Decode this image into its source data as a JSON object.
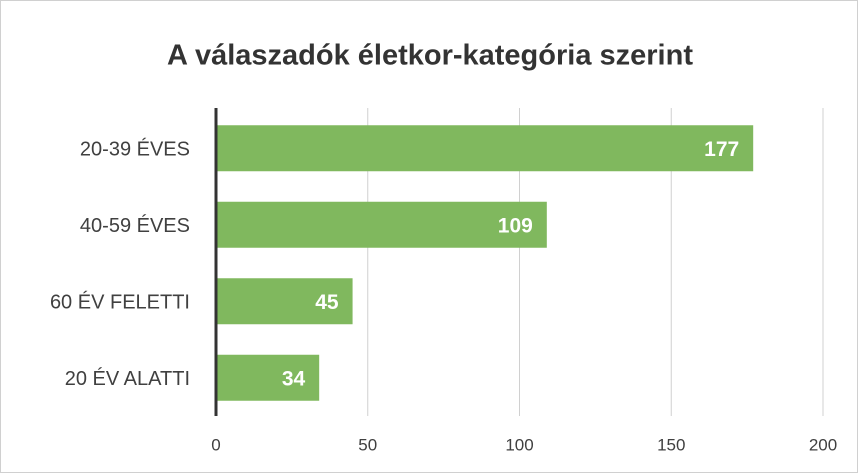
{
  "chart_data": {
    "type": "bar",
    "orientation": "horizontal",
    "title": "A válaszadók életkor-kategória szerint",
    "categories": [
      "20-39 ÉVES",
      "40-59 ÉVES",
      "60 ÉV FELETTI",
      "20 ÉV ALATTI"
    ],
    "values": [
      177,
      109,
      45,
      34
    ],
    "color": "#80b85e",
    "xlim": [
      0,
      200
    ],
    "xticks": [
      0,
      50,
      100,
      150,
      200
    ],
    "grid": true,
    "data_labels": true
  }
}
